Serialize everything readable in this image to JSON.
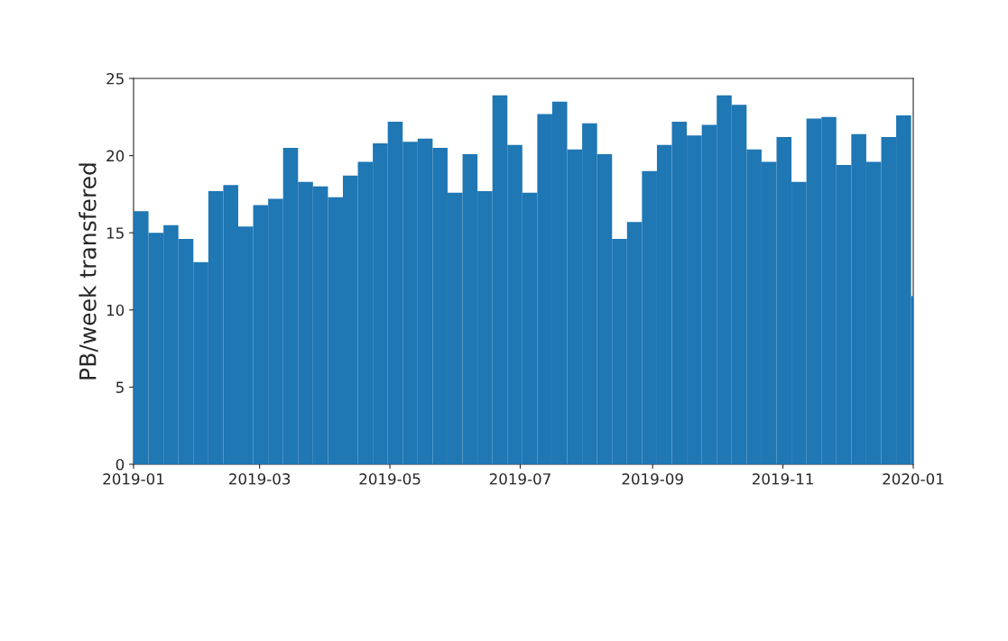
{
  "chart_data": {
    "type": "histogram",
    "ylabel": "PB/week transfered",
    "bins": [
      "2019-01-01",
      "2019-01-08",
      "2019-01-15",
      "2019-01-22",
      "2019-01-29",
      "2019-02-05",
      "2019-02-12",
      "2019-02-19",
      "2019-02-26",
      "2019-03-05",
      "2019-03-12",
      "2019-03-19",
      "2019-03-26",
      "2019-04-02",
      "2019-04-09",
      "2019-04-16",
      "2019-04-23",
      "2019-04-30",
      "2019-05-07",
      "2019-05-14",
      "2019-05-21",
      "2019-05-28",
      "2019-06-04",
      "2019-06-11",
      "2019-06-18",
      "2019-06-25",
      "2019-07-02",
      "2019-07-09",
      "2019-07-16",
      "2019-07-23",
      "2019-07-30",
      "2019-08-06",
      "2019-08-13",
      "2019-08-20",
      "2019-08-27",
      "2019-09-03",
      "2019-09-10",
      "2019-09-17",
      "2019-09-24",
      "2019-10-01",
      "2019-10-08",
      "2019-10-15",
      "2019-10-22",
      "2019-10-29",
      "2019-11-05",
      "2019-11-12",
      "2019-11-19",
      "2019-11-26",
      "2019-12-03",
      "2019-12-10",
      "2019-12-17",
      "2019-12-24",
      "2019-12-31",
      "2020-01-01"
    ],
    "values": [
      16.4,
      15.0,
      15.5,
      14.6,
      13.1,
      17.7,
      18.1,
      15.4,
      16.8,
      17.2,
      20.5,
      18.3,
      18.0,
      17.3,
      18.7,
      19.6,
      20.8,
      22.2,
      20.9,
      21.1,
      20.5,
      17.6,
      20.1,
      17.7,
      23.9,
      20.7,
      17.6,
      22.7,
      23.5,
      20.4,
      22.1,
      20.1,
      14.6,
      15.7,
      19.0,
      20.7,
      22.2,
      21.3,
      22.0,
      23.9,
      23.3,
      20.4,
      19.6,
      21.2,
      18.3,
      22.4,
      22.5,
      19.4,
      21.4,
      19.6,
      21.2,
      22.6,
      10.9
    ],
    "color": "#1f77b4",
    "xlim": [
      "2019-01",
      "2020-01"
    ],
    "xticks": [
      "2019-01",
      "2019-03",
      "2019-05",
      "2019-07",
      "2019-09",
      "2019-11",
      "2020-01"
    ],
    "ylim": [
      0,
      25
    ],
    "yticks": [
      0,
      5,
      10,
      15,
      20,
      25
    ]
  }
}
